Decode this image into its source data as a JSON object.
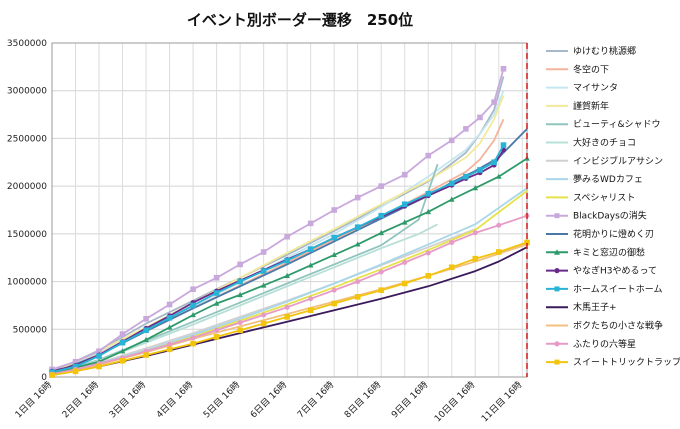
{
  "chart_data": {
    "type": "line",
    "title": "イベント別ボーダー遷移　250位",
    "xlabel": "",
    "ylabel": "",
    "categories": [
      "1日目 16時",
      "2日目 16時",
      "3日目 16時",
      "4日目 16時",
      "5日目 16時",
      "6日目 16時",
      "7日目 16時",
      "8日目 16時",
      "9日目 16時",
      "10日目 16時",
      "11日目 16時"
    ],
    "x_range": [
      0,
      10.1
    ],
    "ylim": [
      0,
      3500000
    ],
    "yticks": [
      0,
      500000,
      1000000,
      1500000,
      2000000,
      2500000,
      3000000,
      3500000
    ],
    "ytick_labels": [
      "0",
      "500000",
      "1000000",
      "1500000",
      "2000000",
      "2500000",
      "3000000",
      "3500000"
    ],
    "grid": true,
    "legend_position": "right",
    "deadline_x": 10.1,
    "deadline_color": "#d62020",
    "series": [
      {
        "name": "ゆけむり桃源郷",
        "color": "#a6b8c9",
        "marker": "none",
        "x": [
          0,
          1,
          2,
          3,
          4,
          5,
          6,
          7,
          8,
          8.8,
          9.1,
          9.4,
          9.6
        ],
        "y": [
          50000,
          280000,
          560000,
          800000,
          1040000,
          1280000,
          1530000,
          1790000,
          2050000,
          2350000,
          2550000,
          2800000,
          3150000
        ]
      },
      {
        "name": "冬空の下",
        "color": "#f4b39a",
        "marker": "none",
        "x": [
          0,
          1,
          2,
          3,
          4,
          5,
          6,
          7,
          8,
          8.8,
          9.1,
          9.4,
          9.6
        ],
        "y": [
          40000,
          250000,
          480000,
          720000,
          960000,
          1200000,
          1440000,
          1680000,
          1940000,
          2150000,
          2280000,
          2480000,
          2700000
        ]
      },
      {
        "name": "マイサンタ",
        "color": "#c5e6f0",
        "marker": "none",
        "x": [
          0,
          1,
          2,
          3,
          4,
          5,
          6,
          7,
          8,
          8.8,
          9.1,
          9.4,
          9.6
        ],
        "y": [
          40000,
          260000,
          500000,
          740000,
          990000,
          1250000,
          1500000,
          1780000,
          2100000,
          2380000,
          2550000,
          2750000,
          3000000
        ]
      },
      {
        "name": "謹賀新年",
        "color": "#f3e99a",
        "marker": "none",
        "x": [
          0,
          1,
          2,
          3,
          4,
          5,
          6,
          7,
          8,
          8.8,
          9.1,
          9.4,
          9.6
        ],
        "y": [
          40000,
          270000,
          520000,
          780000,
          1040000,
          1300000,
          1550000,
          1810000,
          2060000,
          2300000,
          2450000,
          2700000,
          2950000
        ]
      },
      {
        "name": "ビューティ&シャドウ",
        "color": "#8fc5bd",
        "marker": "none",
        "x": [
          0,
          1,
          2,
          3,
          4,
          5,
          6,
          7,
          7.8,
          8.2
        ],
        "y": [
          30000,
          180000,
          380000,
          580000,
          780000,
          980000,
          1180000,
          1380000,
          1650000,
          2230000
        ]
      },
      {
        "name": "大好きのチョコ",
        "color": "#b7dfd7",
        "marker": "none",
        "x": [
          0,
          1,
          2,
          3,
          4,
          5,
          6,
          7,
          7.8,
          8.2
        ],
        "y": [
          30000,
          170000,
          360000,
          550000,
          750000,
          950000,
          1150000,
          1350000,
          1500000,
          1600000
        ]
      },
      {
        "name": "インビジブルアサシン",
        "color": "#d0d0d0",
        "marker": "none",
        "x": [
          0,
          1,
          2,
          3,
          4,
          5,
          6,
          7,
          8,
          9
        ],
        "y": [
          40000,
          150000,
          300000,
          460000,
          630000,
          800000,
          980000,
          1170000,
          1360000,
          1550000
        ]
      },
      {
        "name": "夢みるWDカフェ",
        "color": "#a8d6ea",
        "marker": "none",
        "x": [
          0,
          1,
          2,
          3,
          4,
          5,
          6,
          7,
          8,
          9,
          10.1
        ],
        "y": [
          30000,
          140000,
          280000,
          440000,
          610000,
          790000,
          980000,
          1180000,
          1390000,
          1600000,
          1980000
        ]
      },
      {
        "name": "スペシャリスト",
        "color": "#e6e24a",
        "marker": "none",
        "x": [
          0,
          1,
          2,
          3,
          4,
          5,
          6,
          7,
          8,
          9,
          10.1
        ],
        "y": [
          30000,
          130000,
          270000,
          420000,
          590000,
          760000,
          940000,
          1130000,
          1330000,
          1540000,
          1950000
        ]
      },
      {
        "name": "BlackDaysの消失",
        "color": "#c9a8dc",
        "marker": "square",
        "x": [
          0,
          0.5,
          1,
          1.5,
          2,
          2.5,
          3,
          3.5,
          4,
          4.5,
          5,
          5.5,
          6,
          6.5,
          7,
          7.5,
          8,
          8.5,
          8.8,
          9.1,
          9.4,
          9.6
        ],
        "y": [
          80000,
          160000,
          270000,
          450000,
          610000,
          760000,
          920000,
          1040000,
          1180000,
          1310000,
          1470000,
          1610000,
          1750000,
          1880000,
          2000000,
          2120000,
          2320000,
          2480000,
          2600000,
          2720000,
          2880000,
          3230000
        ]
      },
      {
        "name": "花明かりに燈めく刃",
        "color": "#4a78a8",
        "marker": "none",
        "x": [
          0,
          1,
          2,
          3,
          4,
          5,
          6,
          7,
          8,
          8.5,
          9,
          9.5,
          10.1
        ],
        "y": [
          40000,
          230000,
          480000,
          720000,
          950000,
          1180000,
          1420000,
          1660000,
          1900000,
          2040000,
          2160000,
          2300000,
          2600000
        ]
      },
      {
        "name": "キミと窓辺の御愁",
        "color": "#2e9a6a",
        "marker": "triangle",
        "x": [
          0,
          0.5,
          1,
          1.5,
          2,
          2.5,
          3,
          3.5,
          4,
          4.5,
          5,
          5.5,
          6,
          6.5,
          7,
          7.5,
          8,
          8.5,
          9,
          9.5,
          10.1
        ],
        "y": [
          40000,
          100000,
          160000,
          270000,
          390000,
          520000,
          650000,
          770000,
          860000,
          960000,
          1060000,
          1170000,
          1280000,
          1390000,
          1510000,
          1620000,
          1730000,
          1860000,
          1980000,
          2100000,
          2290000
        ]
      },
      {
        "name": "やなぎH3やめるって",
        "color": "#6a2a8a",
        "marker": "circle",
        "x": [
          0,
          0.5,
          1,
          1.5,
          2,
          2.5,
          3,
          3.5,
          4,
          4.5,
          5,
          5.5,
          6,
          6.5,
          7,
          7.5,
          8,
          8.5,
          8.8,
          9.1,
          9.4,
          9.6
        ],
        "y": [
          60000,
          120000,
          230000,
          370000,
          510000,
          640000,
          780000,
          900000,
          1010000,
          1120000,
          1230000,
          1340000,
          1460000,
          1570000,
          1680000,
          1790000,
          1900000,
          2010000,
          2080000,
          2140000,
          2220000,
          2380000
        ]
      },
      {
        "name": "ホームスイートホーム",
        "color": "#29b3d6",
        "marker": "square",
        "x": [
          0,
          0.5,
          1,
          1.5,
          2,
          2.5,
          3,
          3.5,
          4,
          4.5,
          5,
          5.5,
          6,
          6.5,
          7,
          7.5,
          8,
          8.5,
          8.8,
          9.1,
          9.4,
          9.6
        ],
        "y": [
          50000,
          110000,
          220000,
          360000,
          490000,
          620000,
          750000,
          880000,
          1000000,
          1110000,
          1220000,
          1340000,
          1460000,
          1570000,
          1690000,
          1810000,
          1920000,
          2030000,
          2100000,
          2170000,
          2250000,
          2430000
        ]
      },
      {
        "name": "木馬王子+",
        "color": "#3a1a5a",
        "marker": "none",
        "x": [
          0,
          1,
          2,
          3,
          4,
          5,
          6,
          7,
          8,
          9,
          9.5,
          10.1
        ],
        "y": [
          20000,
          110000,
          220000,
          340000,
          460000,
          580000,
          700000,
          820000,
          950000,
          1110000,
          1210000,
          1360000
        ]
      },
      {
        "name": "ボクたちの小さな戦争",
        "color": "#f0c080",
        "marker": "none",
        "x": [
          0,
          1,
          2,
          3,
          4,
          5,
          6,
          7,
          8,
          9,
          10.1
        ],
        "y": [
          20000,
          130000,
          260000,
          400000,
          530000,
          660000,
          790000,
          920000,
          1060000,
          1210000,
          1390000
        ]
      },
      {
        "name": "ふたりの六等星",
        "color": "#e79ac6",
        "marker": "circle",
        "x": [
          0,
          0.5,
          1,
          1.5,
          2,
          2.5,
          3,
          3.5,
          4,
          4.5,
          5,
          5.5,
          6,
          6.5,
          7,
          7.5,
          8,
          8.5,
          9,
          9.5,
          10.1
        ],
        "y": [
          30000,
          80000,
          140000,
          200000,
          270000,
          340000,
          410000,
          490000,
          570000,
          650000,
          730000,
          820000,
          910000,
          1000000,
          1100000,
          1200000,
          1300000,
          1410000,
          1510000,
          1590000,
          1690000
        ]
      },
      {
        "name": "スイートトリックトラップ+",
        "color": "#f2c40d",
        "marker": "square",
        "x": [
          0,
          0.5,
          1,
          1.5,
          2,
          2.5,
          3,
          3.5,
          4,
          4.5,
          5,
          5.5,
          6,
          6.5,
          7,
          7.5,
          8,
          8.5,
          9,
          9.5,
          10.1
        ],
        "y": [
          20000,
          60000,
          110000,
          170000,
          230000,
          290000,
          350000,
          420000,
          490000,
          560000,
          630000,
          700000,
          770000,
          840000,
          910000,
          980000,
          1060000,
          1150000,
          1240000,
          1310000,
          1410000
        ]
      }
    ]
  }
}
